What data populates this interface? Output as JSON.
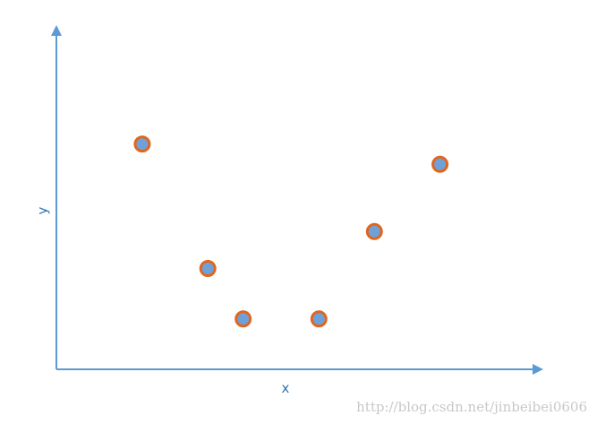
{
  "chart_data": {
    "type": "scatter",
    "title": "",
    "xlabel": "x",
    "ylabel": "y",
    "xlim": [
      0,
      10
    ],
    "ylim": [
      0,
      10
    ],
    "grid": false,
    "legend": "none",
    "points": [
      {
        "x": 1.7,
        "y": 6.7
      },
      {
        "x": 3.0,
        "y": 3.0
      },
      {
        "x": 3.7,
        "y": 1.5
      },
      {
        "x": 5.2,
        "y": 1.5
      },
      {
        "x": 6.3,
        "y": 4.1
      },
      {
        "x": 7.6,
        "y": 6.1
      }
    ],
    "colors": {
      "axis": "#5b9bd5",
      "axis_label": "#2e75b6",
      "point_fill": "#6fa0d8",
      "point_stroke": "#e0661f"
    }
  },
  "watermark": "http://blog.csdn.net/jinbeibei0606"
}
